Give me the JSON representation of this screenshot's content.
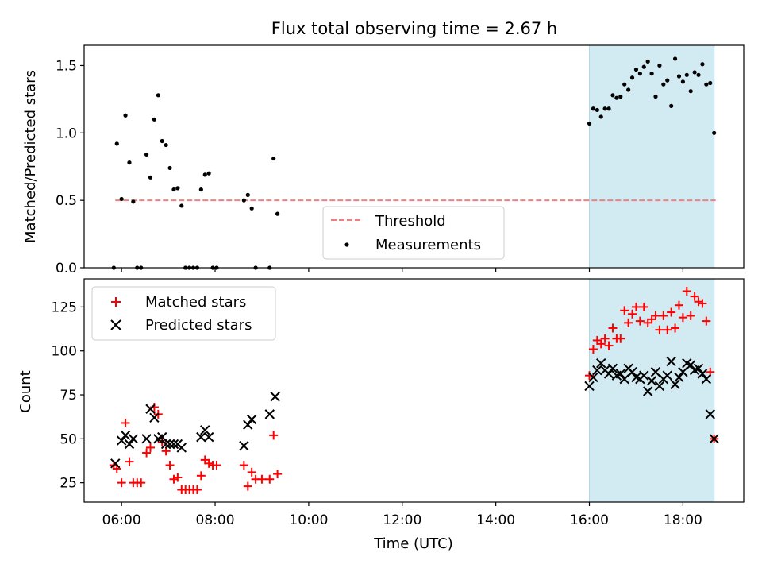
{
  "chart_data": [
    {
      "type": "scatter",
      "title": "Flux total observing time = 2.67 h",
      "xlabel": "",
      "ylabel": "Matched/Predicted stars",
      "xlim": [
        "05:12",
        "19:18"
      ],
      "ylim": [
        0,
        1.65
      ],
      "yticks": [
        "0.0",
        "0.5",
        "1.0",
        "1.5"
      ],
      "xticks": [
        "06:00",
        "08:00",
        "10:00",
        "12:00",
        "14:00",
        "16:00",
        "18:00"
      ],
      "show_xtick_labels": false,
      "legend_position": "bottom-center",
      "shaded_region": {
        "from": "16:00",
        "to": "18:40",
        "color": "#add8e6"
      },
      "threshold": {
        "name": "Threshold",
        "value": 0.5,
        "from": "05:52",
        "to": "18:42",
        "color": "#f08080",
        "style": "dashed"
      },
      "series": [
        {
          "name": "Measurements",
          "color": "#000000",
          "marker": "dot",
          "points": [
            [
              "05:50",
              0.0
            ],
            [
              "05:54",
              0.92
            ],
            [
              "06:00",
              0.51
            ],
            [
              "06:05",
              1.13
            ],
            [
              "06:10",
              0.78
            ],
            [
              "06:15",
              0.49
            ],
            [
              "06:20",
              0.0
            ],
            [
              "06:25",
              0.0
            ],
            [
              "06:32",
              0.84
            ],
            [
              "06:37",
              0.67
            ],
            [
              "06:42",
              1.1
            ],
            [
              "06:47",
              1.28
            ],
            [
              "06:52",
              0.94
            ],
            [
              "06:57",
              0.91
            ],
            [
              "07:02",
              0.74
            ],
            [
              "07:07",
              0.58
            ],
            [
              "07:12",
              0.59
            ],
            [
              "07:17",
              0.46
            ],
            [
              "07:22",
              0.0
            ],
            [
              "07:27",
              0.0
            ],
            [
              "07:32",
              0.0
            ],
            [
              "07:37",
              0.0
            ],
            [
              "07:42",
              0.58
            ],
            [
              "07:47",
              0.69
            ],
            [
              "07:52",
              0.7
            ],
            [
              "07:57",
              0.0
            ],
            [
              "08:02",
              0.0
            ],
            [
              "08:37",
              0.5
            ],
            [
              "08:42",
              0.54
            ],
            [
              "08:47",
              0.44
            ],
            [
              "08:52",
              0.0
            ],
            [
              "09:10",
              0.0
            ],
            [
              "09:15",
              0.81
            ],
            [
              "09:20",
              0.4
            ],
            [
              "16:00",
              1.07
            ],
            [
              "16:05",
              1.18
            ],
            [
              "16:10",
              1.17
            ],
            [
              "16:15",
              1.12
            ],
            [
              "16:20",
              1.18
            ],
            [
              "16:25",
              1.18
            ],
            [
              "16:30",
              1.28
            ],
            [
              "16:35",
              1.26
            ],
            [
              "16:40",
              1.27
            ],
            [
              "16:45",
              1.36
            ],
            [
              "16:50",
              1.32
            ],
            [
              "16:55",
              1.41
            ],
            [
              "17:00",
              1.47
            ],
            [
              "17:05",
              1.44
            ],
            [
              "17:10",
              1.49
            ],
            [
              "17:15",
              1.53
            ],
            [
              "17:20",
              1.44
            ],
            [
              "17:25",
              1.27
            ],
            [
              "17:30",
              1.5
            ],
            [
              "17:35",
              1.36
            ],
            [
              "17:40",
              1.39
            ],
            [
              "17:45",
              1.2
            ],
            [
              "17:50",
              1.55
            ],
            [
              "17:55",
              1.42
            ],
            [
              "18:00",
              1.38
            ],
            [
              "18:05",
              1.43
            ],
            [
              "18:10",
              1.31
            ],
            [
              "18:15",
              1.45
            ],
            [
              "18:20",
              1.43
            ],
            [
              "18:25",
              1.51
            ],
            [
              "18:30",
              1.36
            ],
            [
              "18:35",
              1.37
            ],
            [
              "18:40",
              1.0
            ]
          ]
        }
      ]
    },
    {
      "type": "scatter",
      "title": "",
      "xlabel": "Time (UTC)",
      "ylabel": "Count",
      "xlim": [
        "05:12",
        "19:18"
      ],
      "ylim": [
        14,
        141
      ],
      "yticks": [
        "25",
        "50",
        "75",
        "100",
        "125"
      ],
      "xticks": [
        "06:00",
        "08:00",
        "10:00",
        "12:00",
        "14:00",
        "16:00",
        "18:00"
      ],
      "show_xtick_labels": true,
      "legend_position": "top-left",
      "shaded_region": {
        "from": "16:00",
        "to": "18:40",
        "color": "#add8e6"
      },
      "series": [
        {
          "name": "Matched stars",
          "color": "#ff0000",
          "marker": "plus",
          "points": [
            [
              "05:50",
              35
            ],
            [
              "05:54",
              33
            ],
            [
              "06:00",
              25
            ],
            [
              "06:05",
              59
            ],
            [
              "06:10",
              37
            ],
            [
              "06:15",
              25
            ],
            [
              "06:20",
              25
            ],
            [
              "06:25",
              25
            ],
            [
              "06:32",
              42
            ],
            [
              "06:37",
              45
            ],
            [
              "06:42",
              68
            ],
            [
              "06:47",
              64
            ],
            [
              "06:52",
              48
            ],
            [
              "06:57",
              43
            ],
            [
              "07:02",
              35
            ],
            [
              "07:07",
              27
            ],
            [
              "07:12",
              28
            ],
            [
              "07:17",
              21
            ],
            [
              "07:22",
              21
            ],
            [
              "07:27",
              21
            ],
            [
              "07:32",
              21
            ],
            [
              "07:37",
              21
            ],
            [
              "07:42",
              29
            ],
            [
              "07:47",
              38
            ],
            [
              "07:52",
              36
            ],
            [
              "07:57",
              35
            ],
            [
              "08:02",
              35
            ],
            [
              "08:37",
              35
            ],
            [
              "08:42",
              23
            ],
            [
              "08:47",
              31
            ],
            [
              "08:52",
              27
            ],
            [
              "09:00",
              27
            ],
            [
              "09:10",
              27
            ],
            [
              "09:15",
              52
            ],
            [
              "09:20",
              30
            ],
            [
              "16:00",
              86
            ],
            [
              "16:05",
              101
            ],
            [
              "16:10",
              106
            ],
            [
              "16:15",
              104
            ],
            [
              "16:20",
              107
            ],
            [
              "16:25",
              103
            ],
            [
              "16:30",
              113
            ],
            [
              "16:35",
              107
            ],
            [
              "16:40",
              107
            ],
            [
              "16:45",
              123
            ],
            [
              "16:50",
              116
            ],
            [
              "16:55",
              121
            ],
            [
              "17:00",
              125
            ],
            [
              "17:05",
              117
            ],
            [
              "17:10",
              125
            ],
            [
              "17:15",
              116
            ],
            [
              "17:20",
              118
            ],
            [
              "17:25",
              120
            ],
            [
              "17:30",
              112
            ],
            [
              "17:35",
              120
            ],
            [
              "17:40",
              112
            ],
            [
              "17:45",
              122
            ],
            [
              "17:50",
              113
            ],
            [
              "17:55",
              126
            ],
            [
              "18:00",
              119
            ],
            [
              "18:05",
              134
            ],
            [
              "18:10",
              120
            ],
            [
              "18:15",
              131
            ],
            [
              "18:20",
              128
            ],
            [
              "18:25",
              127
            ],
            [
              "18:30",
              117
            ],
            [
              "18:35",
              88
            ],
            [
              "18:40",
              50
            ]
          ]
        },
        {
          "name": "Predicted stars",
          "color": "#000000",
          "marker": "x",
          "points": [
            [
              "05:52",
              36
            ],
            [
              "06:00",
              49
            ],
            [
              "06:05",
              52
            ],
            [
              "06:10",
              47
            ],
            [
              "06:15",
              50
            ],
            [
              "06:32",
              50
            ],
            [
              "06:37",
              67
            ],
            [
              "06:42",
              62
            ],
            [
              "06:47",
              50
            ],
            [
              "06:52",
              51
            ],
            [
              "06:57",
              47
            ],
            [
              "07:02",
              47
            ],
            [
              "07:07",
              47
            ],
            [
              "07:12",
              47
            ],
            [
              "07:17",
              45
            ],
            [
              "07:42",
              51
            ],
            [
              "07:47",
              55
            ],
            [
              "07:52",
              51
            ],
            [
              "08:37",
              46
            ],
            [
              "08:42",
              58
            ],
            [
              "08:47",
              61
            ],
            [
              "09:10",
              64
            ],
            [
              "09:17",
              74
            ],
            [
              "16:00",
              80
            ],
            [
              "16:05",
              85
            ],
            [
              "16:10",
              89
            ],
            [
              "16:15",
              93
            ],
            [
              "16:20",
              89
            ],
            [
              "16:25",
              87
            ],
            [
              "16:30",
              90
            ],
            [
              "16:35",
              86
            ],
            [
              "16:40",
              87
            ],
            [
              "16:45",
              84
            ],
            [
              "16:50",
              90
            ],
            [
              "16:55",
              88
            ],
            [
              "17:00",
              85
            ],
            [
              "17:05",
              84
            ],
            [
              "17:10",
              86
            ],
            [
              "17:15",
              77
            ],
            [
              "17:20",
              83
            ],
            [
              "17:25",
              88
            ],
            [
              "17:30",
              80
            ],
            [
              "17:35",
              84
            ],
            [
              "17:40",
              86
            ],
            [
              "17:45",
              94
            ],
            [
              "17:50",
              81
            ],
            [
              "17:55",
              85
            ],
            [
              "18:00",
              88
            ],
            [
              "18:05",
              93
            ],
            [
              "18:10",
              92
            ],
            [
              "18:15",
              89
            ],
            [
              "18:20",
              90
            ],
            [
              "18:25",
              87
            ],
            [
              "18:30",
              84
            ],
            [
              "18:35",
              64
            ],
            [
              "18:40",
              50
            ]
          ]
        }
      ]
    }
  ]
}
